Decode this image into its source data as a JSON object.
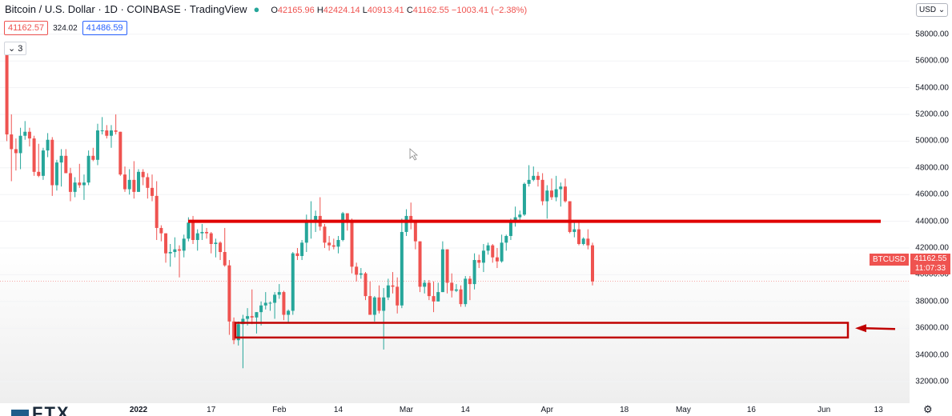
{
  "header": {
    "title": "Bitcoin / U.S. Dollar · 1D · COINBASE · TradingView",
    "ohlc": {
      "o_label": "O",
      "o": "42165.96",
      "h_label": "H",
      "h": "42424.14",
      "l_label": "L",
      "l": "40913.41",
      "c_label": "C",
      "c": "41162.55",
      "change": "−1003.41 (−2.38%)"
    }
  },
  "price_row": {
    "bid": "41162.57",
    "spread": "324.02",
    "ask": "41486.59"
  },
  "indicators": {
    "toggle_label": "3",
    "toggle_icon": "chevron-down-icon"
  },
  "currency": {
    "label": "USD"
  },
  "last_price": {
    "symbol": "BTCUSD",
    "price": "41162.55",
    "countdown": "11:07:33"
  },
  "colors": {
    "up": "#26a69a",
    "down": "#ef5350",
    "annotation": "#e00000",
    "box": "#c00000"
  },
  "chart_data": {
    "type": "candlestick",
    "interval": "1D",
    "ylim": [
      31000,
      61500
    ],
    "y_ticks": [
      32000,
      34000,
      36000,
      38000,
      40000,
      42000,
      44000,
      46000,
      48000,
      50000,
      52000,
      54000,
      56000,
      58000
    ],
    "y_tick_labels": [
      "32000.00",
      "34000.00",
      "36000.00",
      "38000.00",
      "40000.00",
      "42000.00",
      "44000.00",
      "46000.00",
      "48000.00",
      "50000.00",
      "52000.00",
      "54000.00",
      "56000.00",
      "58000.00"
    ],
    "x_tick_labels": [
      "2022",
      "17",
      "Feb",
      "14",
      "Mar",
      "14",
      "Apr",
      "18",
      "May",
      "16",
      "Jun",
      "13"
    ],
    "x_tick_dates": [
      "2022-01-01",
      "2022-01-17",
      "2022-02-01",
      "2022-02-14",
      "2022-03-01",
      "2022-03-14",
      "2022-04-01",
      "2022-04-18",
      "2022-05-01",
      "2022-05-16",
      "2022-06-01",
      "2022-06-13"
    ],
    "candles": [
      [
        "2021-12-03",
        56600,
        56800,
        50000,
        50500
      ],
      [
        "2021-12-04",
        50500,
        52000,
        47000,
        49400
      ],
      [
        "2021-12-05",
        49400,
        50200,
        47800,
        49100
      ],
      [
        "2021-12-06",
        49100,
        51000,
        47900,
        50400
      ],
      [
        "2021-12-07",
        50400,
        51500,
        50100,
        50700
      ],
      [
        "2021-12-08",
        50700,
        51000,
        49600,
        50200
      ],
      [
        "2021-12-09",
        50200,
        50400,
        47400,
        47700
      ],
      [
        "2021-12-10",
        47700,
        49800,
        47300,
        47400
      ],
      [
        "2021-12-11",
        47400,
        49500,
        47100,
        49300
      ],
      [
        "2021-12-12",
        49300,
        50600,
        48800,
        50100
      ],
      [
        "2021-12-13",
        50100,
        50300,
        45900,
        46700
      ],
      [
        "2021-12-14",
        46700,
        48600,
        46300,
        48400
      ],
      [
        "2021-12-15",
        48400,
        49400,
        46600,
        48900
      ],
      [
        "2021-12-16",
        48900,
        49400,
        47600,
        47600
      ],
      [
        "2021-12-17",
        47600,
        48000,
        45500,
        46200
      ],
      [
        "2021-12-18",
        46200,
        47300,
        45800,
        46900
      ],
      [
        "2021-12-19",
        46900,
        48300,
        46500,
        46700
      ],
      [
        "2021-12-20",
        46700,
        47500,
        45600,
        46900
      ],
      [
        "2021-12-21",
        46900,
        49300,
        46700,
        48900
      ],
      [
        "2021-12-22",
        48900,
        49500,
        48500,
        48600
      ],
      [
        "2021-12-23",
        48600,
        51300,
        48200,
        50800
      ],
      [
        "2021-12-24",
        50800,
        51800,
        50500,
        50800
      ],
      [
        "2021-12-25",
        50800,
        51200,
        50200,
        50400
      ],
      [
        "2021-12-26",
        50400,
        51200,
        49500,
        50800
      ],
      [
        "2021-12-27",
        50800,
        52000,
        50500,
        50700
      ],
      [
        "2021-12-28",
        50700,
        50700,
        47400,
        47500
      ],
      [
        "2021-12-29",
        47500,
        48100,
        46200,
        46400
      ],
      [
        "2021-12-30",
        46400,
        47900,
        46000,
        47100
      ],
      [
        "2021-12-31",
        47100,
        48500,
        45700,
        46200
      ],
      [
        "2022-01-01",
        46200,
        47900,
        46200,
        47700
      ],
      [
        "2022-01-02",
        47700,
        47900,
        46700,
        47300
      ],
      [
        "2022-01-03",
        47300,
        47600,
        45700,
        46500
      ],
      [
        "2022-01-04",
        46500,
        47500,
        45500,
        45900
      ],
      [
        "2022-01-05",
        45900,
        47000,
        42600,
        43500
      ],
      [
        "2022-01-06",
        43500,
        43700,
        42500,
        43100
      ],
      [
        "2022-01-07",
        43100,
        43100,
        40900,
        41600
      ],
      [
        "2022-01-08",
        41600,
        42300,
        40600,
        41700
      ],
      [
        "2022-01-09",
        41700,
        42800,
        41300,
        41900
      ],
      [
        "2022-01-10",
        41900,
        42200,
        39800,
        41800
      ],
      [
        "2022-01-11",
        41800,
        43000,
        41300,
        42700
      ],
      [
        "2022-01-12",
        42700,
        44300,
        42500,
        43900
      ],
      [
        "2022-01-13",
        43900,
        44400,
        42300,
        42600
      ],
      [
        "2022-01-14",
        42600,
        43400,
        41800,
        43100
      ],
      [
        "2022-01-15",
        43100,
        43800,
        42600,
        43200
      ],
      [
        "2022-01-16",
        43200,
        43500,
        42700,
        43100
      ],
      [
        "2022-01-17",
        43100,
        43200,
        41600,
        42300
      ],
      [
        "2022-01-18",
        42300,
        42700,
        41300,
        42400
      ],
      [
        "2022-01-19",
        42400,
        42500,
        41100,
        41700
      ],
      [
        "2022-01-20",
        41700,
        43500,
        40600,
        40700
      ],
      [
        "2022-01-21",
        40700,
        41100,
        35500,
        36500
      ],
      [
        "2022-01-22",
        36500,
        36800,
        34800,
        35100
      ],
      [
        "2022-01-23",
        35100,
        36500,
        34700,
        36300
      ],
      [
        "2022-01-24",
        36300,
        37000,
        33000,
        36700
      ],
      [
        "2022-01-25",
        36700,
        37500,
        36200,
        36900
      ],
      [
        "2022-01-26",
        36900,
        38900,
        36300,
        36800
      ],
      [
        "2022-01-27",
        36800,
        37200,
        35600,
        37200
      ],
      [
        "2022-01-28",
        37200,
        38000,
        36200,
        37700
      ],
      [
        "2022-01-29",
        37700,
        38700,
        37400,
        37900
      ],
      [
        "2022-01-30",
        37900,
        38000,
        37300,
        37900
      ],
      [
        "2022-01-31",
        37900,
        38700,
        36700,
        38500
      ],
      [
        "2022-02-01",
        38500,
        39300,
        38200,
        38700
      ],
      [
        "2022-02-02",
        38700,
        38800,
        36600,
        37000
      ],
      [
        "2022-02-03",
        37000,
        37400,
        36400,
        37300
      ],
      [
        "2022-02-04",
        37300,
        41700,
        37000,
        41600
      ],
      [
        "2022-02-05",
        41600,
        42000,
        41100,
        41400
      ],
      [
        "2022-02-06",
        41400,
        42600,
        41100,
        42400
      ],
      [
        "2022-02-07",
        42400,
        44500,
        41700,
        43900
      ],
      [
        "2022-02-08",
        43900,
        45500,
        42700,
        44100
      ],
      [
        "2022-02-09",
        44100,
        44800,
        43200,
        44400
      ],
      [
        "2022-02-10",
        44400,
        45800,
        43300,
        43600
      ],
      [
        "2022-02-11",
        43600,
        43800,
        42000,
        42400
      ],
      [
        "2022-02-12",
        42400,
        42900,
        41800,
        42200
      ],
      [
        "2022-02-13",
        42200,
        42700,
        41900,
        42100
      ],
      [
        "2022-02-14",
        42100,
        42900,
        41600,
        42600
      ],
      [
        "2022-02-15",
        42600,
        44700,
        42500,
        44600
      ],
      [
        "2022-02-16",
        44600,
        44600,
        43300,
        44000
      ],
      [
        "2022-02-17",
        44000,
        44200,
        40100,
        40600
      ],
      [
        "2022-02-18",
        40600,
        40900,
        39500,
        40000
      ],
      [
        "2022-02-19",
        40000,
        40500,
        39700,
        40100
      ],
      [
        "2022-02-20",
        40100,
        40200,
        38100,
        38400
      ],
      [
        "2022-02-21",
        38400,
        39500,
        37000,
        37000
      ],
      [
        "2022-02-22",
        37000,
        38400,
        36500,
        38300
      ],
      [
        "2022-02-23",
        38300,
        39200,
        37100,
        37300
      ],
      [
        "2022-02-24",
        37300,
        39000,
        34400,
        38300
      ],
      [
        "2022-02-25",
        38300,
        39700,
        38100,
        39200
      ],
      [
        "2022-02-26",
        39200,
        40200,
        38600,
        39100
      ],
      [
        "2022-02-27",
        39100,
        39800,
        37100,
        37700
      ],
      [
        "2022-02-28",
        37700,
        44200,
        37500,
        43200
      ],
      [
        "2022-03-01",
        43200,
        44900,
        42900,
        44400
      ],
      [
        "2022-03-02",
        44400,
        45400,
        43400,
        44000
      ],
      [
        "2022-03-03",
        44000,
        44100,
        41900,
        42500
      ],
      [
        "2022-03-04",
        42500,
        42500,
        38700,
        39100
      ],
      [
        "2022-03-05",
        39100,
        39600,
        38600,
        39400
      ],
      [
        "2022-03-06",
        39400,
        39600,
        38100,
        38400
      ],
      [
        "2022-03-07",
        38400,
        39500,
        37200,
        38000
      ],
      [
        "2022-03-08",
        38000,
        39400,
        38000,
        38700
      ],
      [
        "2022-03-09",
        38700,
        42500,
        38700,
        41900
      ],
      [
        "2022-03-10",
        41900,
        41900,
        38600,
        39400
      ],
      [
        "2022-03-11",
        39400,
        40100,
        38300,
        38800
      ],
      [
        "2022-03-12",
        38800,
        39300,
        38700,
        38900
      ],
      [
        "2022-03-13",
        38900,
        39200,
        37600,
        37800
      ],
      [
        "2022-03-14",
        37800,
        39900,
        37600,
        39700
      ],
      [
        "2022-03-15",
        39700,
        39900,
        38100,
        39300
      ],
      [
        "2022-03-16",
        39300,
        41600,
        38900,
        41100
      ],
      [
        "2022-03-17",
        41100,
        41500,
        40500,
        40900
      ],
      [
        "2022-03-18",
        40900,
        42300,
        40200,
        41800
      ],
      [
        "2022-03-19",
        41800,
        42400,
        41500,
        42200
      ],
      [
        "2022-03-20",
        42200,
        42300,
        40900,
        41300
      ],
      [
        "2022-03-21",
        41300,
        42000,
        40500,
        41000
      ],
      [
        "2022-03-22",
        41000,
        43000,
        40900,
        42400
      ],
      [
        "2022-03-23",
        42400,
        43000,
        41800,
        42900
      ],
      [
        "2022-03-24",
        42900,
        44200,
        42600,
        44000
      ],
      [
        "2022-03-25",
        44000,
        45100,
        43600,
        44300
      ],
      [
        "2022-03-26",
        44300,
        44800,
        44100,
        44500
      ],
      [
        "2022-03-27",
        44500,
        46900,
        44400,
        46800
      ],
      [
        "2022-03-28",
        46800,
        48200,
        46600,
        47100
      ],
      [
        "2022-03-29",
        47100,
        48100,
        47000,
        47400
      ],
      [
        "2022-03-30",
        47400,
        47700,
        46600,
        47100
      ],
      [
        "2022-03-31",
        47100,
        47600,
        45200,
        45500
      ],
      [
        "2022-04-01",
        45500,
        46700,
        44200,
        46300
      ],
      [
        "2022-04-02",
        46300,
        47200,
        45600,
        45800
      ],
      [
        "2022-04-03",
        45800,
        47400,
        45500,
        46400
      ],
      [
        "2022-04-04",
        46400,
        46900,
        45100,
        46600
      ],
      [
        "2022-04-05",
        46600,
        47200,
        45400,
        45500
      ],
      [
        "2022-04-06",
        45500,
        45500,
        43100,
        43200
      ],
      [
        "2022-04-07",
        43200,
        43900,
        42800,
        43400
      ],
      [
        "2022-04-08",
        43400,
        43900,
        42200,
        42300
      ],
      [
        "2022-04-09",
        42300,
        42800,
        42200,
        42700
      ],
      [
        "2022-04-10",
        42700,
        43400,
        41900,
        42200
      ],
      [
        "2022-04-11",
        42200,
        42400,
        39200,
        39500
      ]
    ],
    "annotations": {
      "resistance_level": 44000,
      "support_zone": [
        35300,
        36400
      ],
      "arrow_at_price": 36000
    }
  }
}
